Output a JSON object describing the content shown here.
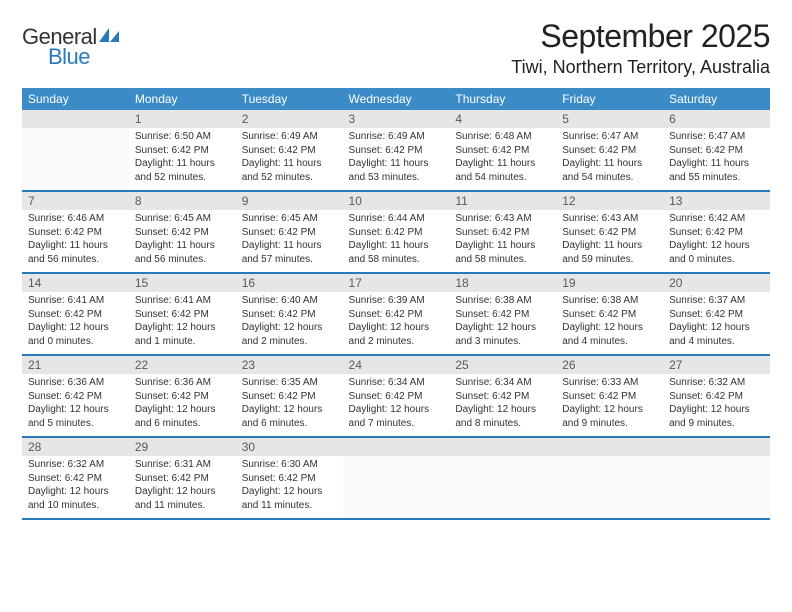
{
  "logo": {
    "word1": "General",
    "word2": "Blue",
    "color_gray": "#555555",
    "color_blue": "#2a7ab9"
  },
  "month_title": "September 2025",
  "location": "Tiwi, Northern Territory, Australia",
  "weekdays": [
    "Sunday",
    "Monday",
    "Tuesday",
    "Wednesday",
    "Thursday",
    "Friday",
    "Saturday"
  ],
  "colors": {
    "header_bg": "#3b8bc6",
    "header_text": "#ffffff",
    "daynum_bg": "#e6e6e6",
    "daynum_text": "#5a5a5a",
    "divider": "#2a7ab9",
    "body_text": "#333333",
    "background": "#ffffff"
  },
  "weeks": [
    [
      null,
      {
        "n": "1",
        "sr": "Sunrise: 6:50 AM",
        "ss": "Sunset: 6:42 PM",
        "dl": "Daylight: 11 hours and 52 minutes."
      },
      {
        "n": "2",
        "sr": "Sunrise: 6:49 AM",
        "ss": "Sunset: 6:42 PM",
        "dl": "Daylight: 11 hours and 52 minutes."
      },
      {
        "n": "3",
        "sr": "Sunrise: 6:49 AM",
        "ss": "Sunset: 6:42 PM",
        "dl": "Daylight: 11 hours and 53 minutes."
      },
      {
        "n": "4",
        "sr": "Sunrise: 6:48 AM",
        "ss": "Sunset: 6:42 PM",
        "dl": "Daylight: 11 hours and 54 minutes."
      },
      {
        "n": "5",
        "sr": "Sunrise: 6:47 AM",
        "ss": "Sunset: 6:42 PM",
        "dl": "Daylight: 11 hours and 54 minutes."
      },
      {
        "n": "6",
        "sr": "Sunrise: 6:47 AM",
        "ss": "Sunset: 6:42 PM",
        "dl": "Daylight: 11 hours and 55 minutes."
      }
    ],
    [
      {
        "n": "7",
        "sr": "Sunrise: 6:46 AM",
        "ss": "Sunset: 6:42 PM",
        "dl": "Daylight: 11 hours and 56 minutes."
      },
      {
        "n": "8",
        "sr": "Sunrise: 6:45 AM",
        "ss": "Sunset: 6:42 PM",
        "dl": "Daylight: 11 hours and 56 minutes."
      },
      {
        "n": "9",
        "sr": "Sunrise: 6:45 AM",
        "ss": "Sunset: 6:42 PM",
        "dl": "Daylight: 11 hours and 57 minutes."
      },
      {
        "n": "10",
        "sr": "Sunrise: 6:44 AM",
        "ss": "Sunset: 6:42 PM",
        "dl": "Daylight: 11 hours and 58 minutes."
      },
      {
        "n": "11",
        "sr": "Sunrise: 6:43 AM",
        "ss": "Sunset: 6:42 PM",
        "dl": "Daylight: 11 hours and 58 minutes."
      },
      {
        "n": "12",
        "sr": "Sunrise: 6:43 AM",
        "ss": "Sunset: 6:42 PM",
        "dl": "Daylight: 11 hours and 59 minutes."
      },
      {
        "n": "13",
        "sr": "Sunrise: 6:42 AM",
        "ss": "Sunset: 6:42 PM",
        "dl": "Daylight: 12 hours and 0 minutes."
      }
    ],
    [
      {
        "n": "14",
        "sr": "Sunrise: 6:41 AM",
        "ss": "Sunset: 6:42 PM",
        "dl": "Daylight: 12 hours and 0 minutes."
      },
      {
        "n": "15",
        "sr": "Sunrise: 6:41 AM",
        "ss": "Sunset: 6:42 PM",
        "dl": "Daylight: 12 hours and 1 minute."
      },
      {
        "n": "16",
        "sr": "Sunrise: 6:40 AM",
        "ss": "Sunset: 6:42 PM",
        "dl": "Daylight: 12 hours and 2 minutes."
      },
      {
        "n": "17",
        "sr": "Sunrise: 6:39 AM",
        "ss": "Sunset: 6:42 PM",
        "dl": "Daylight: 12 hours and 2 minutes."
      },
      {
        "n": "18",
        "sr": "Sunrise: 6:38 AM",
        "ss": "Sunset: 6:42 PM",
        "dl": "Daylight: 12 hours and 3 minutes."
      },
      {
        "n": "19",
        "sr": "Sunrise: 6:38 AM",
        "ss": "Sunset: 6:42 PM",
        "dl": "Daylight: 12 hours and 4 minutes."
      },
      {
        "n": "20",
        "sr": "Sunrise: 6:37 AM",
        "ss": "Sunset: 6:42 PM",
        "dl": "Daylight: 12 hours and 4 minutes."
      }
    ],
    [
      {
        "n": "21",
        "sr": "Sunrise: 6:36 AM",
        "ss": "Sunset: 6:42 PM",
        "dl": "Daylight: 12 hours and 5 minutes."
      },
      {
        "n": "22",
        "sr": "Sunrise: 6:36 AM",
        "ss": "Sunset: 6:42 PM",
        "dl": "Daylight: 12 hours and 6 minutes."
      },
      {
        "n": "23",
        "sr": "Sunrise: 6:35 AM",
        "ss": "Sunset: 6:42 PM",
        "dl": "Daylight: 12 hours and 6 minutes."
      },
      {
        "n": "24",
        "sr": "Sunrise: 6:34 AM",
        "ss": "Sunset: 6:42 PM",
        "dl": "Daylight: 12 hours and 7 minutes."
      },
      {
        "n": "25",
        "sr": "Sunrise: 6:34 AM",
        "ss": "Sunset: 6:42 PM",
        "dl": "Daylight: 12 hours and 8 minutes."
      },
      {
        "n": "26",
        "sr": "Sunrise: 6:33 AM",
        "ss": "Sunset: 6:42 PM",
        "dl": "Daylight: 12 hours and 9 minutes."
      },
      {
        "n": "27",
        "sr": "Sunrise: 6:32 AM",
        "ss": "Sunset: 6:42 PM",
        "dl": "Daylight: 12 hours and 9 minutes."
      }
    ],
    [
      {
        "n": "28",
        "sr": "Sunrise: 6:32 AM",
        "ss": "Sunset: 6:42 PM",
        "dl": "Daylight: 12 hours and 10 minutes."
      },
      {
        "n": "29",
        "sr": "Sunrise: 6:31 AM",
        "ss": "Sunset: 6:42 PM",
        "dl": "Daylight: 12 hours and 11 minutes."
      },
      {
        "n": "30",
        "sr": "Sunrise: 6:30 AM",
        "ss": "Sunset: 6:42 PM",
        "dl": "Daylight: 12 hours and 11 minutes."
      },
      null,
      null,
      null,
      null
    ]
  ]
}
